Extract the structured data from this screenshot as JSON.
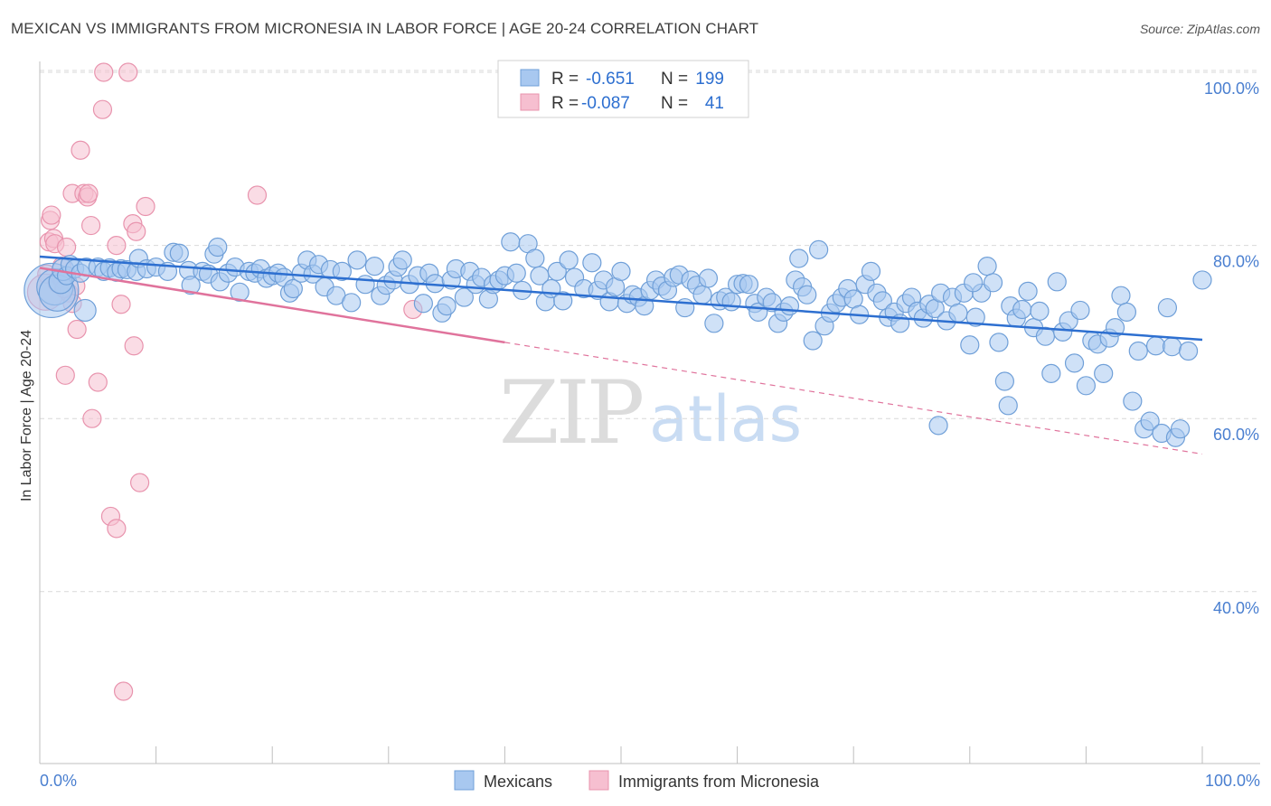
{
  "header": {
    "title": "MEXICAN VS IMMIGRANTS FROM MICRONESIA IN LABOR FORCE | AGE 20-24 CORRELATION CHART",
    "source": "Source: ZipAtlas.com"
  },
  "watermark": {
    "part1": "ZIP",
    "part2": "atlas"
  },
  "colors": {
    "blue_fill": "#a8c8f0",
    "blue_stroke": "#6f9fd8",
    "blue_line": "#2d6fd0",
    "pink_fill": "#f6bfd0",
    "pink_stroke": "#e893ad",
    "pink_line": "#e0739c",
    "tick_text": "#4a7fd0",
    "grid": "#d9d9d9"
  },
  "legend": {
    "rows": [
      {
        "r_label": "R =",
        "r_value": "-0.651",
        "n_label": "N =",
        "n_value": "199"
      },
      {
        "r_label": "R =",
        "r_value": "-0.087",
        "n_label": "N =",
        "n_value": "41"
      }
    ]
  },
  "bottom_legend": {
    "series1": "Mexicans",
    "series2": "Immigrants from Micronesia"
  },
  "chart_data": {
    "type": "scatter",
    "title": "MEXICAN VS IMMIGRANTS FROM MICRONESIA IN LABOR FORCE | AGE 20-24 CORRELATION CHART",
    "xlabel": "",
    "ylabel": "In Labor Force | Age 20-24",
    "xlim": [
      0,
      100
    ],
    "ylim": [
      20,
      102
    ],
    "x_tick_labels": [
      "0.0%",
      "100.0%"
    ],
    "y_ticks": [
      40,
      60,
      80,
      100
    ],
    "y_tick_labels": [
      "40.0%",
      "60.0%",
      "80.0%",
      "100.0%"
    ],
    "grid": true,
    "series": [
      {
        "name": "Mexicans",
        "r": -0.651,
        "n": 199,
        "trend": {
          "x0": 0,
          "y0": 78.7,
          "x1": 100,
          "y1": 69.1,
          "dashed_from": null
        },
        "points": [
          [
            1.0,
            74.8,
            3
          ],
          [
            1.3,
            75.2,
            2
          ],
          [
            1.5,
            74.5,
            2
          ],
          [
            1.8,
            75.8,
            1.3
          ],
          [
            2.0,
            77.2,
            1.2
          ],
          [
            2.3,
            76.5,
            1
          ],
          [
            2.6,
            77.8,
            1
          ],
          [
            3.0,
            77.3,
            1
          ],
          [
            3.5,
            76.8,
            1
          ],
          [
            4.0,
            77.5,
            1
          ],
          [
            3.9,
            72.5,
            1.2
          ],
          [
            5.0,
            77.5,
            1
          ],
          [
            5.5,
            77.0,
            1
          ],
          [
            6.0,
            77.4,
            1
          ],
          [
            6.6,
            76.9,
            1
          ],
          [
            7.0,
            77.3,
            1
          ],
          [
            7.5,
            77.2,
            1
          ],
          [
            8.3,
            77.0,
            1
          ],
          [
            8.5,
            78.5,
            1
          ],
          [
            9.2,
            77.3,
            1
          ],
          [
            10.0,
            77.5,
            1
          ],
          [
            11.0,
            77.0,
            1
          ],
          [
            11.5,
            79.2,
            1
          ],
          [
            12.0,
            79.1,
            1
          ],
          [
            12.8,
            77.1,
            1
          ],
          [
            13.0,
            75.4,
            1
          ],
          [
            14.0,
            77.0,
            1
          ],
          [
            14.5,
            76.7,
            1
          ],
          [
            15.0,
            79.0,
            1
          ],
          [
            15.3,
            79.8,
            1
          ],
          [
            15.5,
            75.8,
            1
          ],
          [
            16.2,
            76.8,
            1
          ],
          [
            16.8,
            77.5,
            1
          ],
          [
            17.2,
            74.6,
            1
          ],
          [
            18.0,
            77.0,
            1
          ],
          [
            18.5,
            76.8,
            1
          ],
          [
            19.0,
            77.3,
            1
          ],
          [
            19.5,
            76.2,
            1
          ],
          [
            20.0,
            76.5,
            1
          ],
          [
            20.5,
            76.8,
            1
          ],
          [
            21.0,
            76.3,
            1
          ],
          [
            21.5,
            74.5,
            1
          ],
          [
            21.8,
            75.0,
            1
          ],
          [
            22.5,
            76.8,
            1
          ],
          [
            23.0,
            78.3,
            1
          ],
          [
            23.5,
            76.7,
            1
          ],
          [
            24.0,
            77.8,
            1
          ],
          [
            24.5,
            75.2,
            1
          ],
          [
            25.0,
            77.2,
            1
          ],
          [
            25.5,
            74.2,
            1
          ],
          [
            26.0,
            77.0,
            1
          ],
          [
            26.8,
            73.4,
            1
          ],
          [
            27.3,
            78.3,
            1
          ],
          [
            28.0,
            75.5,
            1
          ],
          [
            28.8,
            77.6,
            1
          ],
          [
            29.3,
            74.2,
            1
          ],
          [
            29.8,
            75.4,
            1
          ],
          [
            30.4,
            76.0,
            1
          ],
          [
            30.8,
            77.5,
            1
          ],
          [
            31.2,
            78.3,
            1
          ],
          [
            31.8,
            75.5,
            1
          ],
          [
            32.5,
            76.5,
            1
          ],
          [
            33.0,
            73.3,
            1
          ],
          [
            33.5,
            76.8,
            1
          ],
          [
            34.0,
            75.6,
            1
          ],
          [
            34.6,
            72.2,
            1
          ],
          [
            35.0,
            73.0,
            1
          ],
          [
            35.4,
            76.0,
            1
          ],
          [
            35.8,
            77.3,
            1
          ],
          [
            36.5,
            74.0,
            1
          ],
          [
            37.0,
            77.0,
            1
          ],
          [
            37.5,
            75.5,
            1
          ],
          [
            38.0,
            76.3,
            1
          ],
          [
            38.6,
            73.8,
            1
          ],
          [
            39.0,
            75.5,
            1
          ],
          [
            39.5,
            76.0,
            1
          ],
          [
            40.0,
            76.5,
            1
          ],
          [
            40.5,
            80.4,
            1
          ],
          [
            41.0,
            76.8,
            1
          ],
          [
            41.5,
            74.8,
            1
          ],
          [
            42.0,
            80.2,
            1
          ],
          [
            42.6,
            78.5,
            1
          ],
          [
            43.0,
            76.5,
            1
          ],
          [
            43.5,
            73.5,
            1
          ],
          [
            44.0,
            75.0,
            1
          ],
          [
            44.5,
            77.0,
            1
          ],
          [
            45.0,
            73.6,
            1
          ],
          [
            45.5,
            78.3,
            1
          ],
          [
            46.0,
            76.3,
            1
          ],
          [
            46.8,
            75.0,
            1
          ],
          [
            47.5,
            78.0,
            1
          ],
          [
            48.0,
            74.8,
            1
          ],
          [
            48.5,
            76.0,
            1
          ],
          [
            49.0,
            73.5,
            1
          ],
          [
            49.5,
            75.2,
            1
          ],
          [
            50.0,
            77.0,
            1
          ],
          [
            50.5,
            73.3,
            1
          ],
          [
            51.0,
            74.3,
            1
          ],
          [
            51.5,
            74.0,
            1
          ],
          [
            52.0,
            73.0,
            1
          ],
          [
            52.5,
            74.8,
            1
          ],
          [
            53.0,
            76.0,
            1
          ],
          [
            53.5,
            75.3,
            1
          ],
          [
            54.0,
            74.8,
            1
          ],
          [
            54.5,
            76.3,
            1
          ],
          [
            55.0,
            76.6,
            1
          ],
          [
            55.5,
            72.8,
            1
          ],
          [
            56.0,
            76.0,
            1
          ],
          [
            56.5,
            75.4,
            1
          ],
          [
            57.0,
            74.3,
            1
          ],
          [
            57.5,
            76.2,
            1
          ],
          [
            58.0,
            71.0,
            1
          ],
          [
            58.5,
            73.6,
            1
          ],
          [
            59.0,
            74.0,
            1
          ],
          [
            59.5,
            73.5,
            1
          ],
          [
            60.0,
            75.5,
            1
          ],
          [
            60.5,
            75.6,
            1
          ],
          [
            61.0,
            75.5,
            1
          ],
          [
            61.5,
            73.3,
            1
          ],
          [
            61.8,
            72.3,
            1
          ],
          [
            62.5,
            74.0,
            1
          ],
          [
            63.0,
            73.4,
            1
          ],
          [
            63.5,
            71.0,
            1
          ],
          [
            64.0,
            72.3,
            1
          ],
          [
            64.5,
            73.0,
            1
          ],
          [
            65.0,
            76.0,
            1
          ],
          [
            65.3,
            78.5,
            1
          ],
          [
            65.6,
            75.2,
            1
          ],
          [
            66.0,
            74.3,
            1
          ],
          [
            66.5,
            69.0,
            1
          ],
          [
            67.0,
            79.5,
            1
          ],
          [
            67.5,
            70.7,
            1
          ],
          [
            68.0,
            72.2,
            1
          ],
          [
            68.5,
            73.3,
            1
          ],
          [
            69.0,
            74.0,
            1
          ],
          [
            69.5,
            75.0,
            1
          ],
          [
            70.0,
            73.8,
            1
          ],
          [
            70.5,
            72.0,
            1
          ],
          [
            71.0,
            75.5,
            1
          ],
          [
            71.5,
            77.0,
            1
          ],
          [
            72.0,
            74.5,
            1
          ],
          [
            72.5,
            73.6,
            1
          ],
          [
            73.0,
            71.7,
            1
          ],
          [
            73.5,
            72.3,
            1
          ],
          [
            74.0,
            71.0,
            1
          ],
          [
            74.5,
            73.3,
            1
          ],
          [
            75.0,
            74.0,
            1
          ],
          [
            75.5,
            72.4,
            1
          ],
          [
            76.0,
            71.6,
            1
          ],
          [
            76.5,
            73.2,
            1
          ],
          [
            77.0,
            72.7,
            1
          ],
          [
            77.5,
            74.5,
            1
          ],
          [
            78.0,
            71.3,
            1
          ],
          [
            78.5,
            74.0,
            1
          ],
          [
            79.0,
            72.2,
            1
          ],
          [
            79.5,
            74.5,
            1
          ],
          [
            80.0,
            68.5,
            1
          ],
          [
            80.5,
            71.7,
            1
          ],
          [
            81.0,
            74.5,
            1
          ],
          [
            81.5,
            77.6,
            1
          ],
          [
            82.0,
            75.7,
            1
          ],
          [
            82.5,
            68.8,
            1
          ],
          [
            83.0,
            64.3,
            1
          ],
          [
            83.5,
            73.0,
            1
          ],
          [
            84.0,
            71.6,
            1
          ],
          [
            84.5,
            72.6,
            1
          ],
          [
            85.0,
            74.7,
            1
          ],
          [
            85.5,
            70.5,
            1
          ],
          [
            86.0,
            72.4,
            1
          ],
          [
            86.5,
            69.5,
            1
          ],
          [
            87.0,
            65.2,
            1
          ],
          [
            87.5,
            75.8,
            1
          ],
          [
            88.0,
            70.0,
            1
          ],
          [
            88.5,
            71.3,
            1
          ],
          [
            89.0,
            66.4,
            1
          ],
          [
            89.5,
            72.5,
            1
          ],
          [
            90.0,
            63.8,
            1
          ],
          [
            90.5,
            69.0,
            1
          ],
          [
            91.0,
            68.6,
            1
          ],
          [
            91.5,
            65.2,
            1
          ],
          [
            92.0,
            69.3,
            1
          ],
          [
            92.5,
            70.5,
            1
          ],
          [
            93.0,
            74.2,
            1
          ],
          [
            93.5,
            72.3,
            1
          ],
          [
            94.0,
            62.0,
            1
          ],
          [
            94.5,
            67.8,
            1
          ],
          [
            95.0,
            58.8,
            1
          ],
          [
            95.5,
            59.7,
            1
          ],
          [
            96.0,
            68.4,
            1
          ],
          [
            96.5,
            58.3,
            1
          ],
          [
            97.0,
            72.8,
            1
          ],
          [
            97.4,
            68.3,
            1
          ],
          [
            97.7,
            57.8,
            1
          ],
          [
            98.1,
            58.8,
            1
          ],
          [
            98.8,
            67.8,
            1
          ],
          [
            100.0,
            76.0,
            1
          ],
          [
            80.3,
            75.7,
            1
          ],
          [
            83.3,
            61.5,
            1
          ],
          [
            77.3,
            59.2,
            1
          ]
        ]
      },
      {
        "name": "Immigrants from Micronesia",
        "r": -0.087,
        "n": 41,
        "trend": {
          "x0": 0,
          "y0": 77.4,
          "x1": 100,
          "y1": 55.9,
          "dashed_from": 40
        },
        "points": [
          [
            0.6,
            76.7,
            1
          ],
          [
            0.5,
            74.6,
            2
          ],
          [
            0.8,
            80.4,
            1
          ],
          [
            0.9,
            82.9,
            1
          ],
          [
            1.0,
            83.5,
            1
          ],
          [
            1.2,
            80.8,
            1
          ],
          [
            1.3,
            80.2,
            1
          ],
          [
            1.5,
            75.6,
            1
          ],
          [
            1.8,
            76.3,
            1
          ],
          [
            2.0,
            76.0,
            1
          ],
          [
            2.2,
            65.0,
            1
          ],
          [
            2.3,
            79.8,
            1
          ],
          [
            2.5,
            74.5,
            1
          ],
          [
            2.8,
            73.3,
            1
          ],
          [
            2.8,
            86.0,
            1
          ],
          [
            3.1,
            75.3,
            1
          ],
          [
            3.2,
            70.3,
            1
          ],
          [
            3.5,
            91.0,
            1
          ],
          [
            3.8,
            86.0,
            1
          ],
          [
            4.1,
            85.6,
            1
          ],
          [
            4.4,
            82.3,
            1
          ],
          [
            4.5,
            60.0,
            1
          ],
          [
            5.0,
            64.2,
            1
          ],
          [
            5.4,
            95.7,
            1
          ],
          [
            5.5,
            100.0,
            1
          ],
          [
            6.1,
            48.7,
            1
          ],
          [
            6.6,
            47.3,
            1
          ],
          [
            7.0,
            73.2,
            1
          ],
          [
            7.2,
            28.5,
            1
          ],
          [
            7.6,
            100.0,
            1
          ],
          [
            8.0,
            82.5,
            1
          ],
          [
            8.3,
            81.6,
            1
          ],
          [
            8.1,
            68.4,
            1
          ],
          [
            8.6,
            52.6,
            1
          ],
          [
            9.1,
            84.5,
            1
          ],
          [
            18.7,
            85.8,
            1
          ],
          [
            32.1,
            72.6,
            1
          ],
          [
            4.2,
            86.0,
            1
          ],
          [
            1.9,
            77.6,
            1
          ],
          [
            2.1,
            75.0,
            1
          ],
          [
            6.6,
            80.0,
            1
          ]
        ]
      }
    ]
  }
}
